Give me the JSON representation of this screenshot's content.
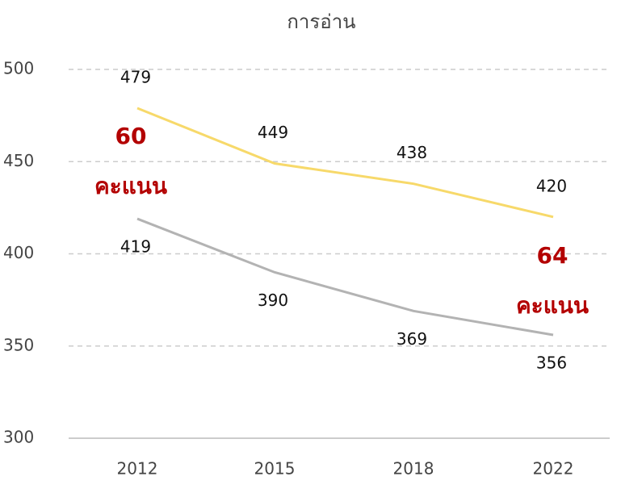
{
  "chart_data": {
    "type": "line",
    "title": "การอ่าน",
    "categories": [
      "2012",
      "2015",
      "2018",
      "2022"
    ],
    "series": [
      {
        "color": "#f7d96a",
        "values": [
          479,
          449,
          438,
          420
        ],
        "labels": "above"
      },
      {
        "color": "#b3b3b3",
        "values": [
          419,
          390,
          369,
          356
        ],
        "labels": "below"
      }
    ],
    "ylim": [
      300,
      500
    ],
    "yticks": [
      300,
      350,
      400,
      450,
      500
    ],
    "grid": true,
    "annotations": [
      {
        "lines": [
          "60",
          "คะแนน"
        ],
        "color": "#b30000"
      },
      {
        "lines": [
          "64",
          "คะแนน"
        ],
        "color": "#b30000"
      }
    ]
  }
}
